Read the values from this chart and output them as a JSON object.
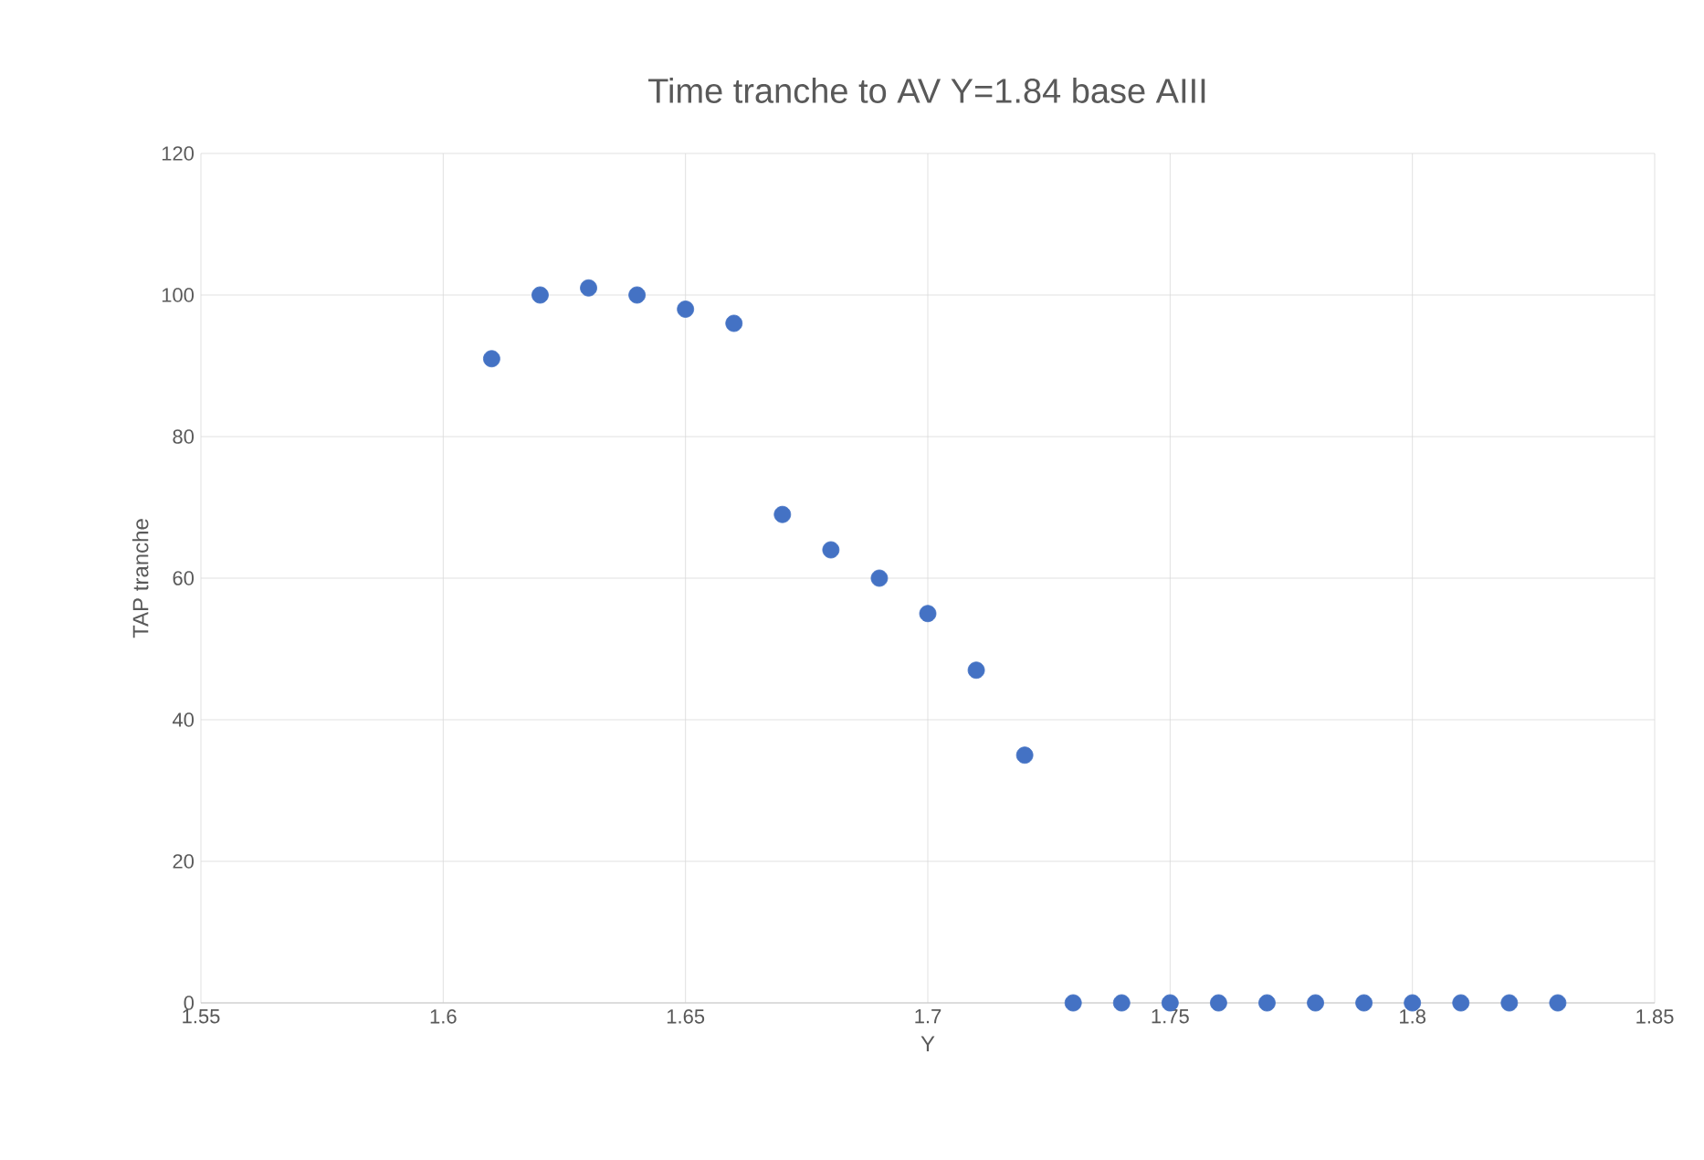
{
  "chart_data": {
    "type": "scatter",
    "title": "Time tranche to AV Y=1.84 base AIII",
    "xlabel": "Y",
    "ylabel": "TAP tranche",
    "x": [
      1.61,
      1.62,
      1.63,
      1.64,
      1.65,
      1.66,
      1.67,
      1.68,
      1.69,
      1.7,
      1.71,
      1.72,
      1.73,
      1.74,
      1.75,
      1.76,
      1.77,
      1.78,
      1.79,
      1.8,
      1.81,
      1.82,
      1.83
    ],
    "values": [
      91,
      100,
      101,
      100,
      98,
      96,
      69,
      64,
      60,
      55,
      47,
      35,
      0,
      0,
      0,
      0,
      0,
      0,
      0,
      0,
      0,
      0,
      0
    ],
    "color": "#4472c4",
    "xlim": [
      1.55,
      1.85
    ],
    "xticks": [
      1.55,
      1.6,
      1.65,
      1.7,
      1.75,
      1.8,
      1.85
    ],
    "ylim": [
      0,
      120
    ],
    "yticks": [
      0,
      20,
      40,
      60,
      80,
      100,
      120
    ],
    "grid": true
  }
}
